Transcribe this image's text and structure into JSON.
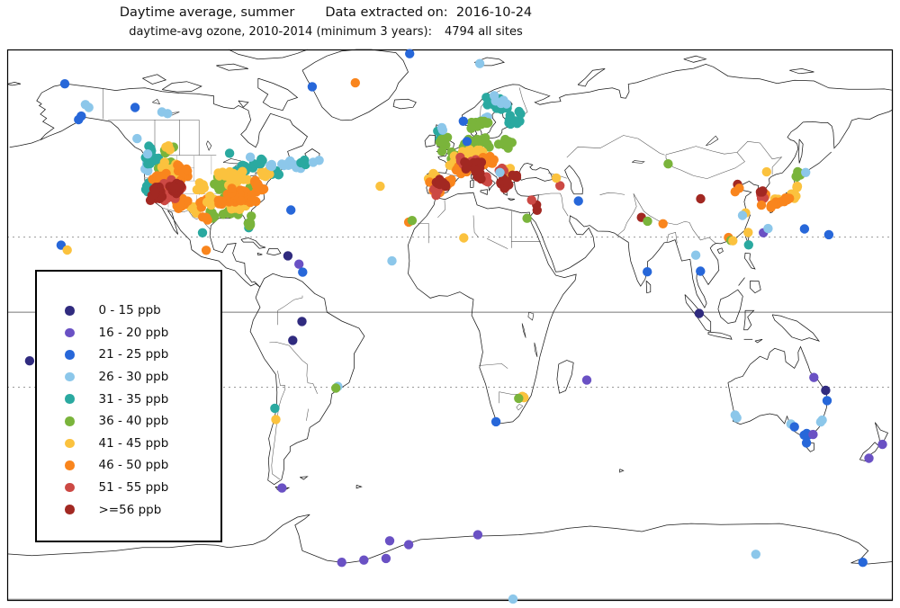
{
  "header": {
    "title_left": "Daytime average, summer",
    "title_right": "Data extracted on:  2016-10-24",
    "subtitle_left": "daytime-avg ozone, 2010-2014 (minimum 3 years):",
    "subtitle_right": "4794 all sites"
  },
  "chart_data": {
    "type": "scatter",
    "map_projection": "equirectangular world map",
    "lon_range": [
      -180,
      180
    ],
    "lat_range": [
      -90,
      82
    ],
    "gridlines": {
      "equator_solid": true,
      "tropics_dashed": true,
      "bottom_edge_line": true
    },
    "legend_position": "left-middle box",
    "categories": [
      {
        "label": "0 - 15 ppb",
        "color": "#302b7f"
      },
      {
        "label": "16 - 20 ppb",
        "color": "#6a51c4"
      },
      {
        "label": "21 - 25 ppb",
        "color": "#2767d9"
      },
      {
        "label": "26 - 30 ppb",
        "color": "#8cc7ea"
      },
      {
        "label": "31 - 35 ppb",
        "color": "#2aa9a0"
      },
      {
        "label": "36 - 40 ppb",
        "color": "#7ab43b"
      },
      {
        "label": "41 - 45 ppb",
        "color": "#fbc23e"
      },
      {
        "label": "46 - 50 ppb",
        "color": "#f9851d"
      },
      {
        "label": "51 - 55 ppb",
        "color": "#cc4944"
      },
      {
        "label": ">=56 ppb",
        "color": "#a22822"
      }
    ],
    "points": [
      [
        -156.6,
        71.3,
        2
      ],
      [
        -148.2,
        64.8,
        3
      ],
      [
        -146.8,
        63.9,
        3
      ],
      [
        -149.9,
        61.2,
        2
      ],
      [
        -151,
        60.1,
        2
      ],
      [
        -128,
        63.9,
        2
      ],
      [
        -117.1,
        62.5,
        3
      ],
      [
        -114.8,
        62,
        3
      ],
      [
        -127.2,
        54.2,
        3
      ],
      [
        -122.9,
        49.4,
        3
      ],
      [
        -89.6,
        49.6,
        4
      ],
      [
        -81.2,
        48.4,
        3
      ],
      [
        -56,
        70.4,
        2
      ],
      [
        -16.4,
        80.7,
        2
      ],
      [
        -38.5,
        71.6,
        7
      ],
      [
        12.1,
        77.6,
        3
      ],
      [
        -158.1,
        20.9,
        2
      ],
      [
        -155.6,
        19.4,
        6
      ],
      [
        -170.9,
        -15.2,
        0
      ],
      [
        -100.6,
        24.8,
        4
      ],
      [
        -99.1,
        19.3,
        7
      ],
      [
        -64.7,
        31.9,
        2
      ],
      [
        -65.9,
        17.6,
        0
      ],
      [
        -61.4,
        15,
        1
      ],
      [
        -59.9,
        12.5,
        2
      ],
      [
        -53.2,
        47.4,
        3
      ],
      [
        -55.6,
        46.8,
        3
      ],
      [
        -28.4,
        39.3,
        6
      ],
      [
        -16.8,
        28.1,
        7
      ],
      [
        -15.4,
        28.6,
        5
      ],
      [
        -23.6,
        16,
        3
      ],
      [
        5.6,
        23.2,
        6
      ],
      [
        31.3,
        29.3,
        5
      ],
      [
        29.4,
        -26.3,
        6
      ],
      [
        30.1,
        -26.7,
        6
      ],
      [
        27.9,
        -26.9,
        5
      ],
      [
        18.7,
        -34.2,
        2
      ],
      [
        55.6,
        -21.2,
        1
      ],
      [
        5.4,
        59.6,
        2
      ],
      [
        6.9,
        53.3,
        2
      ],
      [
        20.3,
        43.6,
        3
      ],
      [
        44.7,
        39.5,
        8
      ],
      [
        43.2,
        41.9,
        6
      ],
      [
        35.2,
        33.5,
        9
      ],
      [
        35.4,
        31.8,
        9
      ],
      [
        33.2,
        35,
        8
      ],
      [
        52.2,
        34.7,
        2
      ],
      [
        77.8,
        29.6,
        9
      ],
      [
        80.3,
        28.4,
        5
      ],
      [
        86.6,
        27.6,
        7
      ],
      [
        80.2,
        12.6,
        2
      ],
      [
        99.9,
        17.8,
        3
      ],
      [
        101.8,
        12.8,
        2
      ],
      [
        101.3,
        -0.4,
        0
      ],
      [
        88.7,
        46.3,
        5
      ],
      [
        101.9,
        35.4,
        9
      ],
      [
        116.9,
        39.9,
        9
      ],
      [
        115.9,
        37.6,
        7
      ],
      [
        117.6,
        38.7,
        7
      ],
      [
        128.7,
        43.8,
        6
      ],
      [
        120.2,
        31,
        6
      ],
      [
        118.9,
        30.2,
        3
      ],
      [
        113.2,
        23.3,
        7
      ],
      [
        114.2,
        22.4,
        5
      ],
      [
        115,
        22.3,
        6
      ],
      [
        121.2,
        24.9,
        6
      ],
      [
        121.4,
        21,
        4
      ],
      [
        127.4,
        24.8,
        1
      ],
      [
        129.3,
        26.1,
        3
      ],
      [
        144.1,
        26,
        2
      ],
      [
        154,
        24.2,
        2
      ],
      [
        126.6,
        33.4,
        7
      ],
      [
        144.6,
        43.6,
        3
      ],
      [
        147.9,
        -20.4,
        1
      ],
      [
        152.7,
        -24.4,
        0
      ],
      [
        153.3,
        -27.6,
        2
      ],
      [
        151.3,
        -33.7,
        3
      ],
      [
        150.7,
        -34.3,
        3
      ],
      [
        145,
        -37.9,
        2
      ],
      [
        145.8,
        -38.3,
        2
      ],
      [
        144,
        -38.4,
        2
      ],
      [
        147.6,
        -38.2,
        1
      ],
      [
        138.6,
        -34.9,
        3
      ],
      [
        140,
        -35.8,
        2
      ],
      [
        115.9,
        -32.1,
        3
      ],
      [
        116.6,
        -33,
        3
      ],
      [
        144.9,
        -40.8,
        2
      ],
      [
        175.8,
        -41.3,
        1
      ],
      [
        170.3,
        -45.6,
        1
      ],
      [
        -60.2,
        -2.9,
        0
      ],
      [
        -63.9,
        -8.8,
        0
      ],
      [
        -45.6,
        -23.2,
        3
      ],
      [
        -46.4,
        -23.7,
        5
      ],
      [
        -71.2,
        -30,
        4
      ],
      [
        -70.8,
        -33.5,
        6
      ],
      [
        -68.3,
        -54.9,
        1
      ],
      [
        -44,
        -78.1,
        1
      ],
      [
        -35,
        -77.4,
        1
      ],
      [
        -26,
        -76.9,
        1
      ],
      [
        -24.5,
        -71.4,
        1
      ],
      [
        -16.8,
        -72.6,
        1
      ],
      [
        11.3,
        -69.5,
        1
      ],
      [
        124.3,
        -75.6,
        3
      ],
      [
        167.8,
        -78.1,
        2
      ],
      [
        25.6,
        -89.6,
        3
      ]
    ],
    "clusters": [
      [
        -123.3,
        45.5,
        1.2,
        3.5,
        5,
        3,
        11
      ],
      [
        -120,
        47.5,
        4.5,
        2.2,
        9,
        4,
        12
      ],
      [
        -122.8,
        39.5,
        0.9,
        2.2,
        4,
        4,
        13
      ],
      [
        -115.5,
        45.8,
        6,
        2.4,
        14,
        5,
        14
      ],
      [
        -111.8,
        42.5,
        7,
        4.5,
        18,
        6,
        15
      ],
      [
        -103.5,
        32,
        3,
        2,
        6,
        6,
        16
      ],
      [
        -116.5,
        40.5,
        5,
        5,
        24,
        7,
        17
      ],
      [
        -109.5,
        33.8,
        4.5,
        2.4,
        12,
        7,
        18
      ],
      [
        -108,
        43.5,
        4,
        2.8,
        10,
        7,
        19
      ],
      [
        -114,
        37.8,
        6,
        4,
        16,
        8,
        20
      ],
      [
        -118.8,
        36.9,
        3.2,
        3,
        22,
        9,
        21
      ],
      [
        -110.3,
        39,
        3.8,
        2.6,
        16,
        9,
        22
      ],
      [
        -100.5,
        38.5,
        2.8,
        4,
        6,
        6,
        23
      ],
      [
        -100,
        34.5,
        2.5,
        2.5,
        4,
        7,
        25
      ],
      [
        -67.5,
        46.2,
        3.5,
        1.8,
        6,
        3,
        31
      ],
      [
        -62.5,
        45.8,
        2.8,
        1.5,
        5,
        3,
        32
      ],
      [
        -85,
        44.8,
        6.5,
        1.8,
        11,
        4,
        33
      ],
      [
        -70.5,
        43.8,
        2.2,
        1.6,
        5,
        4,
        34
      ],
      [
        -81.3,
        26.8,
        1.4,
        1.6,
        4,
        4,
        35
      ],
      [
        -60.5,
        46.8,
        2,
        1.2,
        3,
        4,
        36
      ],
      [
        -89.5,
        30.8,
        6.5,
        1.3,
        8,
        5,
        37
      ],
      [
        -97,
        30.2,
        2.2,
        2.2,
        6,
        5,
        38
      ],
      [
        -81.8,
        28.6,
        1.4,
        2,
        5,
        5,
        39
      ],
      [
        -93.5,
        40,
        3.8,
        3.2,
        10,
        5,
        40
      ],
      [
        -80.5,
        38.5,
        3.5,
        2.5,
        7,
        5,
        41
      ],
      [
        -91,
        36,
        3,
        2.5,
        6,
        5,
        42
      ],
      [
        -88.5,
        41.8,
        7.5,
        2.4,
        22,
        6,
        43
      ],
      [
        -87.5,
        33.5,
        5.5,
        2,
        12,
        6,
        44
      ],
      [
        -74.8,
        42.8,
        3.2,
        1.8,
        8,
        6,
        45
      ],
      [
        -97.5,
        35.5,
        2.5,
        3,
        6,
        6,
        46
      ],
      [
        -84.5,
        36.8,
        7,
        3,
        30,
        7,
        47
      ],
      [
        -78,
        39.8,
        3.5,
        2.4,
        12,
        7,
        48
      ],
      [
        -98.5,
        29,
        2.5,
        2,
        4,
        7,
        49
      ],
      [
        -93,
        35,
        2.5,
        2,
        5,
        7,
        50
      ],
      [
        -113.5,
        50.8,
        3.5,
        1.6,
        5,
        5,
        55
      ],
      [
        -114.5,
        51.5,
        2.5,
        1.2,
        3,
        6,
        56
      ],
      [
        -121.5,
        50.8,
        2,
        1.8,
        4,
        4,
        57
      ],
      [
        -77.5,
        46.8,
        3.5,
        1.5,
        5,
        4,
        58
      ],
      [
        -72.5,
        46.2,
        2.5,
        1.2,
        4,
        3,
        59
      ],
      [
        19,
        64.8,
        5,
        3,
        22,
        4,
        61
      ],
      [
        21,
        66,
        4.5,
        2,
        6,
        3,
        62
      ],
      [
        14.5,
        61,
        3,
        2,
        4,
        3,
        63
      ],
      [
        11.5,
        58.7,
        4.5,
        1.8,
        10,
        5,
        64
      ],
      [
        25.5,
        58.5,
        3,
        1.8,
        5,
        4,
        65
      ],
      [
        27,
        61.5,
        3,
        2,
        5,
        4,
        66
      ],
      [
        -3.5,
        54.5,
        2.8,
        2.8,
        7,
        4,
        67
      ],
      [
        -2.5,
        52.8,
        2.6,
        2.6,
        12,
        5,
        68
      ],
      [
        -3.5,
        57,
        1.5,
        1,
        2,
        3,
        69
      ],
      [
        10.5,
        52.2,
        6.5,
        2.6,
        26,
        5,
        70
      ],
      [
        23.5,
        52.5,
        4,
        2.2,
        8,
        5,
        71
      ],
      [
        2.2,
        48.8,
        2.6,
        1.6,
        5,
        5,
        72
      ],
      [
        9.5,
        49.6,
        6,
        2.2,
        22,
        6,
        73
      ],
      [
        2.8,
        46.6,
        3.4,
        2.4,
        11,
        6,
        74
      ],
      [
        -6.8,
        41.8,
        2.4,
        1.6,
        5,
        6,
        75
      ],
      [
        23,
        43.8,
        3,
        2,
        6,
        6,
        76
      ],
      [
        16.5,
        47.4,
        4,
        1.8,
        9,
        7,
        77
      ],
      [
        3.2,
        44.3,
        3.8,
        1.8,
        9,
        7,
        78
      ],
      [
        -4.8,
        39.2,
        4.2,
        2.4,
        11,
        7,
        79
      ],
      [
        -0.6,
        40.8,
        1.8,
        1.8,
        5,
        7,
        80
      ],
      [
        8,
        47.2,
        4.8,
        1.4,
        8,
        8,
        81
      ],
      [
        -6.2,
        37.8,
        2.4,
        1.8,
        5,
        8,
        82
      ],
      [
        21,
        44.3,
        3.2,
        1.8,
        6,
        8,
        83
      ],
      [
        14.8,
        41.3,
        1.8,
        1.4,
        4,
        8,
        84
      ],
      [
        9.5,
        45.9,
        4.2,
        1.4,
        12,
        9,
        85
      ],
      [
        11.6,
        43.4,
        2.2,
        2.2,
        9,
        9,
        86
      ],
      [
        -3.8,
        40.4,
        3.2,
        1.9,
        8,
        9,
        87
      ],
      [
        22.2,
        40.3,
        3.2,
        2.2,
        9,
        9,
        88
      ],
      [
        26.8,
        41.8,
        2,
        1.4,
        3,
        9,
        89
      ],
      [
        142.3,
        43.2,
        1.6,
        0.9,
        5,
        5,
        91
      ],
      [
        140.9,
        41.9,
        0.8,
        0.6,
        2,
        5,
        92
      ],
      [
        132.8,
        35,
        2.6,
        0.8,
        5,
        6,
        93
      ],
      [
        139.7,
        36.3,
        1.4,
        1.2,
        8,
        6,
        94
      ],
      [
        140.8,
        38.9,
        0.9,
        1.4,
        4,
        6,
        95
      ],
      [
        134.5,
        34.3,
        2.4,
        0.9,
        7,
        7,
        96
      ],
      [
        137.5,
        35.2,
        1.8,
        0.9,
        6,
        7,
        97
      ],
      [
        131.2,
        33.2,
        1.4,
        1,
        4,
        7,
        98
      ],
      [
        127.8,
        36.6,
        1.7,
        1.3,
        6,
        7,
        99
      ],
      [
        127.3,
        36.2,
        1.5,
        1.2,
        5,
        8,
        100
      ],
      [
        127,
        37.4,
        1.2,
        0.8,
        3,
        9,
        101
      ]
    ]
  }
}
